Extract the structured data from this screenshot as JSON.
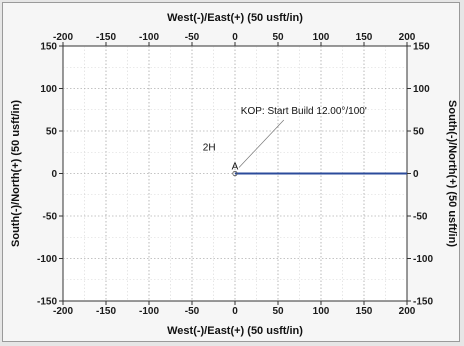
{
  "chart_data": {
    "type": "line",
    "title": "",
    "xlabel_top": "West(-)/East(+) (50 usft/in)",
    "xlabel_bottom": "West(-)/East(+) (50 usft/in)",
    "ylabel_left": "South(-)/North(+) (50 usft/in)",
    "ylabel_right": "South(-)/North(+) (50 usft/in)",
    "xlim": [
      -200,
      200
    ],
    "ylim": [
      -150,
      150
    ],
    "xticks": [
      -200,
      -150,
      -100,
      -50,
      0,
      50,
      100,
      150,
      200
    ],
    "yticks": [
      -150,
      -100,
      -50,
      0,
      50,
      100,
      150
    ],
    "grid": true,
    "series": [
      {
        "color": "#2b4b9b",
        "x": [
          0,
          200
        ],
        "y": [
          0,
          0
        ]
      }
    ],
    "annotations": [
      {
        "text": "KOP: Start Build 12.00°/100'",
        "x": 80,
        "y": 70
      },
      {
        "text": "2H",
        "x": -30,
        "y": 27
      },
      {
        "text": "A",
        "x": 0,
        "y": 5
      }
    ]
  }
}
